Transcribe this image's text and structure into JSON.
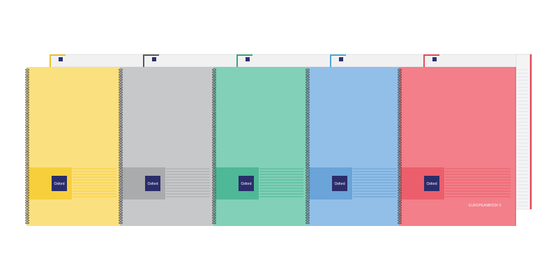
{
  "notebooks": [
    {
      "color": "#fbe07f",
      "band": "#f7cf3c",
      "accent": "#e9c12a",
      "logo": "Oxford"
    },
    {
      "color": "#c6c8c9",
      "band": "#a9abac",
      "accent": "#55585a",
      "logo": "Oxford"
    },
    {
      "color": "#81d0b7",
      "band": "#4fb896",
      "accent": "#36a583",
      "logo": "Oxford"
    },
    {
      "color": "#92bfe7",
      "band": "#6aa4d8",
      "accent": "#4aa8d6",
      "logo": "Oxford"
    },
    {
      "color": "#f27f89",
      "band": "#eb5f6c",
      "accent": "#e24b5a",
      "logo": "Oxford"
    }
  ],
  "cover_text": "EUROPEANBOOK 5"
}
